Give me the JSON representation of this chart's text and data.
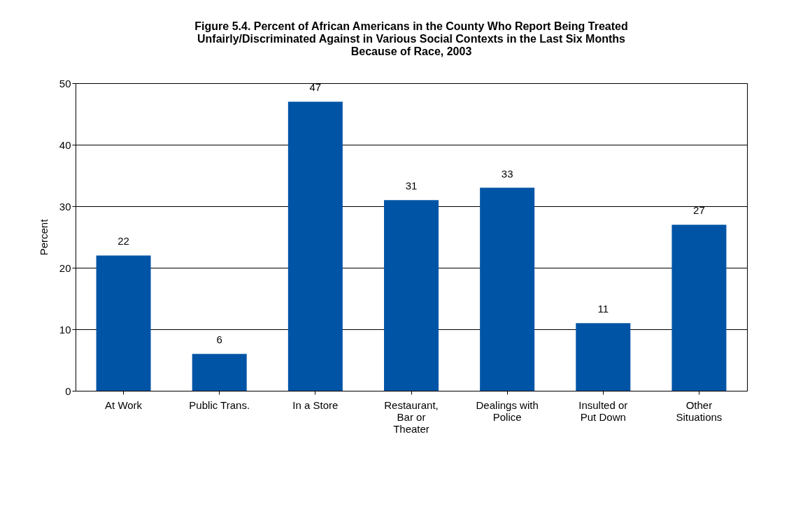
{
  "chart_data": {
    "type": "bar",
    "title": "Figure 5.4. Percent of African Americans in the County Who Report Being Treated Unfairly/Discriminated Against in Various Social Contexts in the Last Six Months Because of Race, 2003",
    "ylabel": "Percent",
    "categories": [
      "At Work",
      "Public Trans.",
      "In a Store",
      "Restaurant, Bar or Theater",
      "Dealings with Police",
      "Insulted or Put Down",
      "Other Situations"
    ],
    "values": [
      22,
      6,
      47,
      31,
      33,
      11,
      27
    ],
    "color": "#0054a6",
    "ylim": [
      0,
      50
    ],
    "yticks": [
      0,
      10,
      20,
      30,
      40,
      50
    ],
    "grid": "y",
    "data_labels": true
  }
}
